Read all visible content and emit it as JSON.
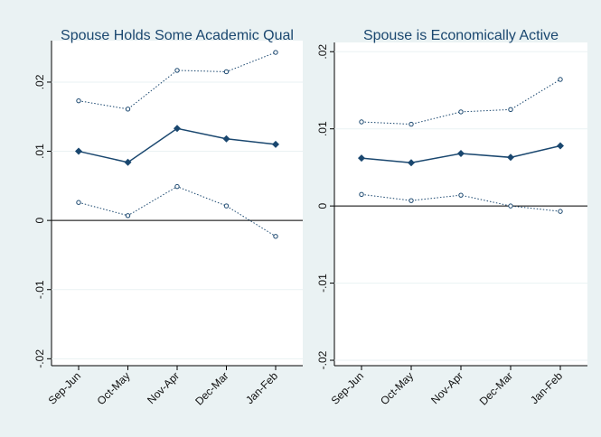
{
  "chart_data": [
    {
      "type": "line",
      "title": "Spouse Holds Some Academic Qual",
      "categories": [
        "Sep-Jun",
        "Oct-May",
        "Nov-Apr",
        "Dec-Mar",
        "Jan-Feb"
      ],
      "series": [
        {
          "color": "#1a476f",
          "style": "solid",
          "marker": "diamond",
          "values": [
            0.01,
            0.0084,
            0.0133,
            0.0118,
            0.011
          ]
        },
        {
          "color": "#1a476f",
          "style": "dotted",
          "marker": "hollow-circle",
          "values": [
            0.0173,
            0.0161,
            0.0217,
            0.0215,
            0.0243
          ]
        },
        {
          "color": "#1a476f",
          "style": "dotted",
          "marker": "hollow-circle",
          "values": [
            0.0026,
            0.0007,
            0.0049,
            0.0021,
            -0.0023
          ]
        }
      ],
      "ylim": [
        -0.021,
        0.026
      ],
      "yticks": [
        {
          "value": -0.02,
          "label": "-.02"
        },
        {
          "value": -0.01,
          "label": "-.01"
        },
        0,
        {
          "value": 0.01,
          "label": ".01"
        },
        {
          "value": 0.02,
          "label": ".02"
        }
      ],
      "refline": 0,
      "grid": true
    },
    {
      "type": "line",
      "title": "Spouse is Economically Active",
      "categories": [
        "Sep-Jun",
        "Oct-May",
        "Nov-Apr",
        "Dec-Mar",
        "Jan-Feb"
      ],
      "series": [
        {
          "color": "#1a476f",
          "style": "solid",
          "marker": "diamond",
          "values": [
            0.0062,
            0.0056,
            0.0068,
            0.0063,
            0.0078
          ]
        },
        {
          "color": "#1a476f",
          "style": "dotted",
          "marker": "hollow-circle",
          "values": [
            0.0109,
            0.0106,
            0.0122,
            0.0125,
            0.0164
          ]
        },
        {
          "color": "#1a476f",
          "style": "dotted",
          "marker": "hollow-circle",
          "values": [
            0.0015,
            0.0007,
            0.0014,
            0.0,
            -0.0007
          ]
        }
      ],
      "ylim": [
        -0.0207,
        0.0212
      ],
      "yticks": [
        {
          "value": -0.02,
          "label": "-.02"
        },
        {
          "value": -0.01,
          "label": "-.01"
        },
        0,
        {
          "value": 0.01,
          "label": ".01"
        },
        {
          "value": 0.02,
          "label": ".02"
        }
      ],
      "refline": 0,
      "grid": true
    }
  ]
}
